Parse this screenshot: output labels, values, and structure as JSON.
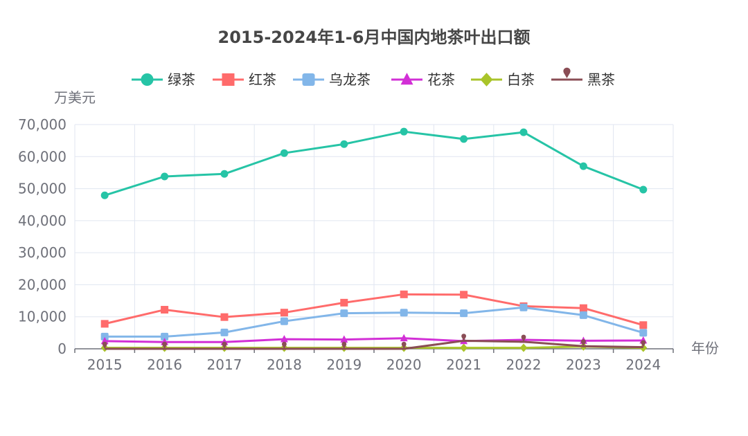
{
  "chart_data": {
    "type": "line",
    "title": "2015-2024年1-6月中国内地茶叶出口额",
    "ylabel": "万美元",
    "xlabel": "年份",
    "categories": [
      "2015",
      "2016",
      "2017",
      "2018",
      "2019",
      "2020",
      "2021",
      "2022",
      "2023",
      "2024"
    ],
    "ylim": [
      0,
      70000
    ],
    "yticks": [
      0,
      10000,
      20000,
      30000,
      40000,
      50000,
      60000,
      70000
    ],
    "ytick_labels": [
      "0",
      "10,000",
      "20,000",
      "30,000",
      "40,000",
      "50,000",
      "60,000",
      "70,000"
    ],
    "grid": true,
    "legend_position": "top-center",
    "series": [
      {
        "name": "绿茶",
        "color": "#26c4a6",
        "marker": "circle",
        "values": [
          47900,
          53800,
          54600,
          61100,
          63900,
          67800,
          65500,
          67600,
          57000,
          49700
        ]
      },
      {
        "name": "红茶",
        "color": "#ff6b6b",
        "marker": "square",
        "values": [
          7800,
          12200,
          9900,
          11300,
          14400,
          17000,
          16900,
          13300,
          12700,
          7400
        ]
      },
      {
        "name": "乌龙茶",
        "color": "#82b6e9",
        "marker": "roundrect",
        "values": [
          3800,
          3800,
          5100,
          8600,
          11100,
          11300,
          11100,
          12900,
          10500,
          5000
        ]
      },
      {
        "name": "花茶",
        "color": "#d22fd6",
        "marker": "triangle",
        "values": [
          2400,
          2100,
          2100,
          3000,
          2900,
          3300,
          2400,
          2800,
          2500,
          2600
        ]
      },
      {
        "name": "白茶",
        "color": "#a9c42a",
        "marker": "diamond",
        "values": [
          300,
          300,
          300,
          300,
          300,
          300,
          300,
          300,
          700,
          300
        ]
      },
      {
        "name": "黑茶",
        "color": "#8a4d55",
        "marker": "pin",
        "values": [
          0,
          0,
          0,
          0,
          0,
          0,
          2500,
          2200,
          800,
          500
        ]
      }
    ]
  }
}
